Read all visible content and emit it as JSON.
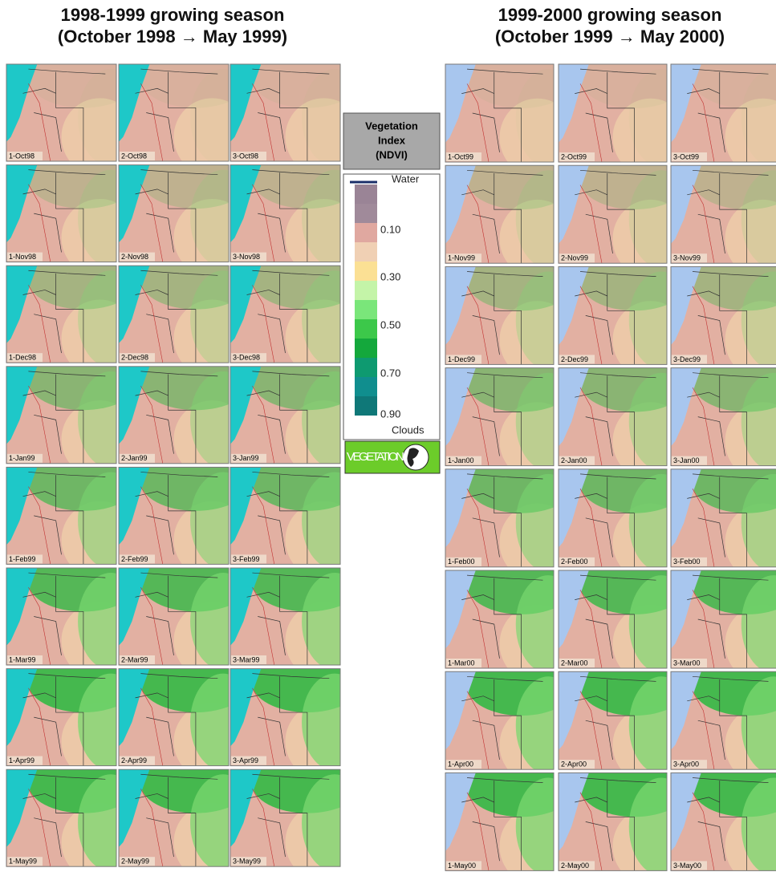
{
  "left": {
    "title": [
      "1998-1999 growing season",
      "(October 1998 → May 1999)"
    ],
    "tiles": [
      [
        "1-Oct98",
        "2-Oct98",
        "3-Oct98"
      ],
      [
        "1-Nov98",
        "2-Nov98",
        "3-Nov98"
      ],
      [
        "1-Dec98",
        "2-Dec98",
        "3-Dec98"
      ],
      [
        "1-Jan99",
        "2-Jan99",
        "3-Jan99"
      ],
      [
        "1-Feb99",
        "2-Feb99",
        "3-Feb99"
      ],
      [
        "1-Mar99",
        "2-Mar99",
        "3-Mar99"
      ],
      [
        "1-Apr99",
        "2-Apr99",
        "3-Apr99"
      ],
      [
        "1-May99",
        "2-May99",
        "3-May99"
      ]
    ]
  },
  "right": {
    "title": [
      "1999-2000 growing season",
      "(October 1999 → May 2000)"
    ],
    "tiles": [
      [
        "1-Oct99",
        "2-Oct99",
        "3-Oct99"
      ],
      [
        "1-Nov99",
        "2-Nov99",
        "3-Nov99"
      ],
      [
        "1-Dec99",
        "2-Dec99",
        "3-Dec99"
      ],
      [
        "1-Jan00",
        "2-Jan00",
        "3-Jan00"
      ],
      [
        "1-Feb00",
        "2-Feb00",
        "3-Feb00"
      ],
      [
        "1-Mar00",
        "2-Mar00",
        "3-Mar00"
      ],
      [
        "1-Apr00",
        "2-Apr00",
        "3-Apr00"
      ],
      [
        "1-May00",
        "2-May00",
        "3-May00"
      ]
    ]
  },
  "legend": {
    "title": [
      "Vegetation",
      "Index",
      "(NDVI)"
    ],
    "labels": [
      "Water",
      "0.10",
      "0.30",
      "0.50",
      "0.70",
      "0.90",
      "Clouds"
    ],
    "logo": "VEGETATION"
  }
}
